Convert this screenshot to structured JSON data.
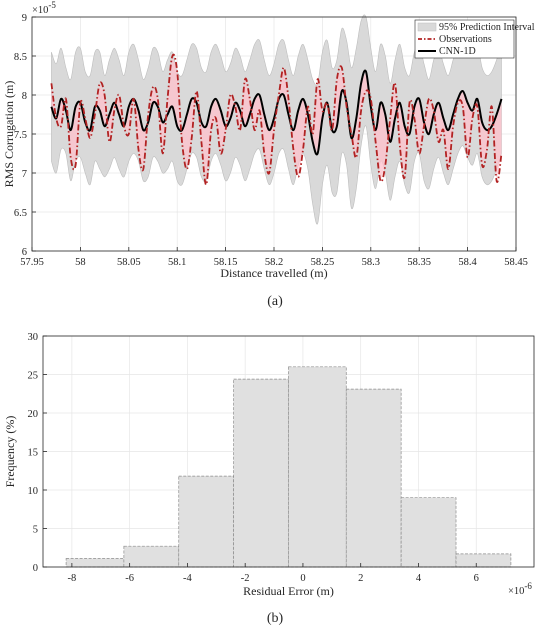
{
  "chart_data": [
    {
      "type": "line",
      "caption": "(a)",
      "xlabel": "Distance travelled (m)",
      "ylabel": "RMS Corrugation (m)",
      "y_exponent_label": "×10",
      "y_exponent_power": "-5",
      "xlim": [
        57.95,
        58.45
      ],
      "ylim": [
        6,
        9
      ],
      "xticks": [
        57.95,
        58.0,
        58.05,
        58.1,
        58.15,
        58.2,
        58.25,
        58.3,
        58.35,
        58.4,
        58.45
      ],
      "xtick_labels": [
        "57.95",
        "58",
        "58.05",
        "58.1",
        "58.15",
        "58.2",
        "58.25",
        "58.3",
        "58.35",
        "58.4",
        "58.45"
      ],
      "yticks": [
        6,
        6.5,
        7,
        7.5,
        8,
        8.5,
        9
      ],
      "ytick_labels": [
        "6",
        "6.5",
        "7",
        "7.5",
        "8",
        "8.5",
        "9"
      ],
      "grid": true,
      "legend_position": "top-right",
      "legend": {
        "interval_label": "95% Prediction Interval",
        "observations_label": "Observations",
        "model_label": "CNN-1D"
      },
      "colors": {
        "interval": "#d9d9d9",
        "interval_edge": "#bdbdbd",
        "residual_fill": "#ffc0cb",
        "observations": "#b22222",
        "model": "#000000"
      },
      "x": [
        57.97,
        57.975,
        57.98,
        57.985,
        57.99,
        57.995,
        58.0,
        58.005,
        58.01,
        58.015,
        58.02,
        58.025,
        58.03,
        58.035,
        58.04,
        58.045,
        58.05,
        58.055,
        58.06,
        58.065,
        58.07,
        58.075,
        58.08,
        58.085,
        58.09,
        58.095,
        58.1,
        58.105,
        58.11,
        58.115,
        58.12,
        58.125,
        58.13,
        58.135,
        58.14,
        58.145,
        58.15,
        58.155,
        58.16,
        58.165,
        58.17,
        58.175,
        58.18,
        58.185,
        58.19,
        58.195,
        58.2,
        58.205,
        58.21,
        58.215,
        58.22,
        58.225,
        58.23,
        58.235,
        58.24,
        58.245,
        58.25,
        58.255,
        58.26,
        58.265,
        58.27,
        58.275,
        58.28,
        58.285,
        58.29,
        58.295,
        58.3,
        58.305,
        58.31,
        58.315,
        58.32,
        58.325,
        58.33,
        58.335,
        58.34,
        58.345,
        58.35,
        58.355,
        58.36,
        58.365,
        58.37,
        58.375,
        58.38,
        58.385,
        58.39,
        58.395,
        58.4,
        58.405,
        58.41,
        58.415,
        58.42,
        58.425,
        58.43,
        58.435
      ],
      "series": [
        {
          "name": "Observations",
          "values": [
            8.15,
            7.7,
            7.6,
            7.95,
            7.2,
            7.1,
            7.9,
            7.7,
            7.45,
            7.75,
            8.15,
            8.0,
            7.4,
            7.8,
            8.0,
            7.6,
            7.5,
            7.95,
            7.3,
            7.05,
            7.75,
            8.1,
            7.95,
            7.25,
            7.95,
            8.5,
            8.3,
            7.4,
            7.05,
            7.45,
            8.05,
            7.4,
            6.85,
            7.55,
            7.7,
            7.25,
            7.55,
            8.0,
            7.85,
            7.55,
            8.2,
            7.95,
            7.55,
            7.8,
            7.25,
            7.0,
            7.55,
            8.0,
            8.35,
            7.95,
            7.3,
            6.95,
            7.3,
            7.85,
            7.5,
            8.2,
            7.8,
            7.9,
            7.55,
            8.2,
            8.35,
            7.85,
            7.5,
            7.2,
            7.8,
            8.05,
            7.95,
            7.4,
            6.9,
            7.1,
            7.7,
            8.15,
            7.35,
            6.95,
            7.9,
            7.7,
            7.25,
            7.6,
            7.95,
            7.8,
            7.4,
            7.55,
            7.05,
            7.6,
            7.9,
            7.85,
            7.2,
            7.7,
            7.85,
            7.1,
            7.3,
            7.85,
            6.9,
            7.25
          ]
        },
        {
          "name": "CNN-1D",
          "values": [
            7.85,
            7.7,
            7.95,
            7.8,
            7.55,
            7.85,
            7.9,
            7.65,
            7.55,
            7.85,
            7.8,
            7.6,
            7.75,
            7.9,
            7.75,
            7.6,
            7.85,
            7.95,
            7.8,
            7.55,
            7.65,
            7.9,
            7.85,
            7.65,
            7.75,
            7.85,
            7.6,
            7.55,
            7.75,
            7.95,
            7.9,
            7.65,
            7.6,
            7.85,
            7.95,
            7.8,
            7.6,
            7.7,
            7.9,
            7.8,
            7.6,
            7.75,
            7.95,
            8.0,
            7.75,
            7.55,
            7.7,
            7.95,
            8.0,
            7.75,
            7.55,
            7.8,
            7.95,
            7.75,
            7.4,
            7.25,
            7.7,
            7.9,
            7.55,
            7.6,
            8.05,
            7.9,
            7.45,
            7.7,
            8.15,
            8.3,
            7.85,
            7.55,
            7.9,
            7.75,
            7.4,
            7.7,
            7.9,
            7.6,
            7.5,
            7.85,
            7.95,
            7.65,
            7.5,
            7.75,
            7.9,
            7.7,
            7.55,
            7.75,
            7.95,
            8.05,
            7.9,
            7.8,
            7.95,
            7.65,
            7.55,
            7.6,
            7.75,
            7.95
          ]
        }
      ],
      "interval_upper": [
        8.55,
        8.4,
        8.6,
        8.35,
        8.2,
        8.55,
        8.6,
        8.3,
        8.25,
        8.55,
        8.55,
        8.25,
        8.45,
        8.6,
        8.45,
        8.25,
        8.55,
        8.65,
        8.45,
        8.2,
        8.35,
        8.6,
        8.55,
        8.3,
        8.45,
        8.55,
        8.3,
        8.25,
        8.45,
        8.65,
        8.6,
        8.35,
        8.3,
        8.55,
        8.65,
        8.5,
        8.3,
        8.4,
        8.6,
        8.5,
        8.3,
        8.45,
        8.65,
        8.7,
        8.45,
        8.25,
        8.4,
        8.65,
        8.7,
        8.45,
        8.25,
        8.5,
        8.65,
        8.45,
        8.2,
        8.15,
        8.55,
        8.7,
        8.35,
        8.45,
        8.85,
        8.7,
        8.35,
        8.6,
        8.95,
        9.0,
        8.6,
        8.3,
        8.65,
        8.5,
        8.15,
        8.45,
        8.65,
        8.35,
        8.25,
        8.55,
        8.65,
        8.4,
        8.2,
        8.45,
        8.6,
        8.4,
        8.25,
        8.45,
        8.65,
        8.75,
        8.6,
        8.5,
        8.65,
        8.35,
        8.25,
        8.3,
        8.45,
        8.65
      ],
      "interval_lower": [
        7.15,
        7.0,
        7.3,
        7.25,
        6.9,
        7.15,
        7.2,
        7.0,
        6.85,
        7.15,
        7.05,
        6.95,
        7.05,
        7.2,
        7.05,
        6.95,
        7.15,
        7.25,
        7.15,
        6.9,
        6.95,
        7.2,
        7.15,
        7.0,
        7.05,
        7.15,
        6.9,
        6.85,
        7.05,
        7.25,
        7.2,
        6.95,
        6.9,
        7.15,
        7.25,
        7.1,
        6.9,
        7.0,
        7.2,
        7.1,
        6.9,
        7.05,
        7.25,
        7.3,
        7.05,
        6.85,
        7.0,
        7.25,
        7.3,
        7.05,
        6.85,
        7.1,
        7.25,
        7.05,
        6.6,
        6.35,
        6.85,
        7.1,
        6.75,
        6.75,
        7.25,
        7.1,
        6.55,
        6.8,
        7.35,
        7.6,
        7.1,
        6.8,
        7.15,
        7.0,
        6.65,
        6.95,
        7.15,
        6.85,
        6.75,
        7.15,
        7.25,
        6.9,
        6.8,
        7.05,
        7.2,
        7.0,
        6.85,
        7.05,
        7.25,
        7.35,
        7.2,
        7.1,
        7.25,
        6.95,
        6.85,
        6.9,
        7.05,
        7.25
      ]
    },
    {
      "type": "bar",
      "caption": "(b)",
      "xlabel": "Residual Error (m)",
      "ylabel": "Frequency (%)",
      "x_exponent_label": "×10",
      "x_exponent_power": "-6",
      "xlim": [
        -9,
        8
      ],
      "ylim": [
        0,
        30
      ],
      "xticks": [
        -8,
        -6,
        -4,
        -2,
        0,
        2,
        4,
        6
      ],
      "xtick_labels": [
        "-8",
        "-6",
        "-4",
        "-2",
        "0",
        "2",
        "4",
        "6"
      ],
      "yticks": [
        0,
        5,
        10,
        15,
        20,
        25,
        30
      ],
      "ytick_labels": [
        "0",
        "5",
        "10",
        "15",
        "20",
        "25",
        "30"
      ],
      "grid": true,
      "colors": {
        "bar_fill": "#e0e0e0",
        "bar_edge": "#8c8c8c"
      },
      "bin_edges": [
        -8.2,
        -6.2,
        -4.3,
        -2.4,
        -0.5,
        1.5,
        3.4,
        5.3,
        7.2
      ],
      "values": [
        1.1,
        2.7,
        11.8,
        24.4,
        26.0,
        23.1,
        9.0,
        1.7
      ]
    }
  ]
}
